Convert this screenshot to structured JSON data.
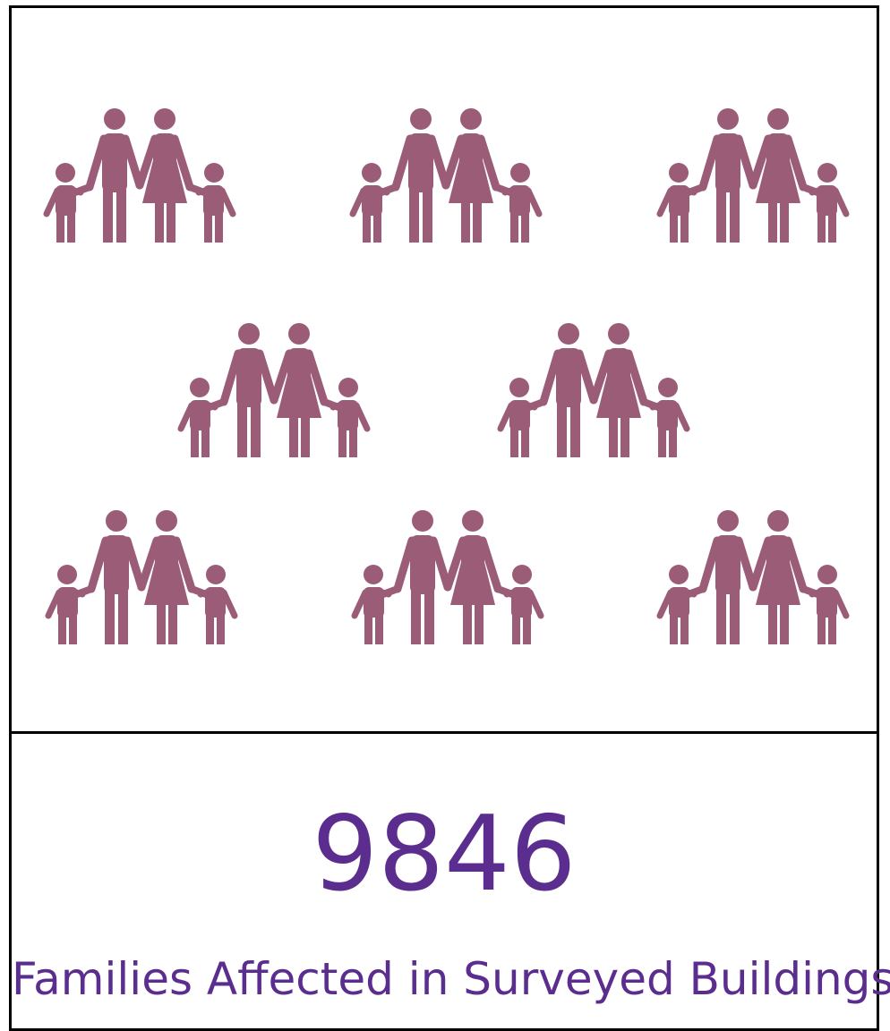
{
  "kpi": {
    "value": "9846",
    "label": "Families Affected in Surveyed Buildings"
  }
}
